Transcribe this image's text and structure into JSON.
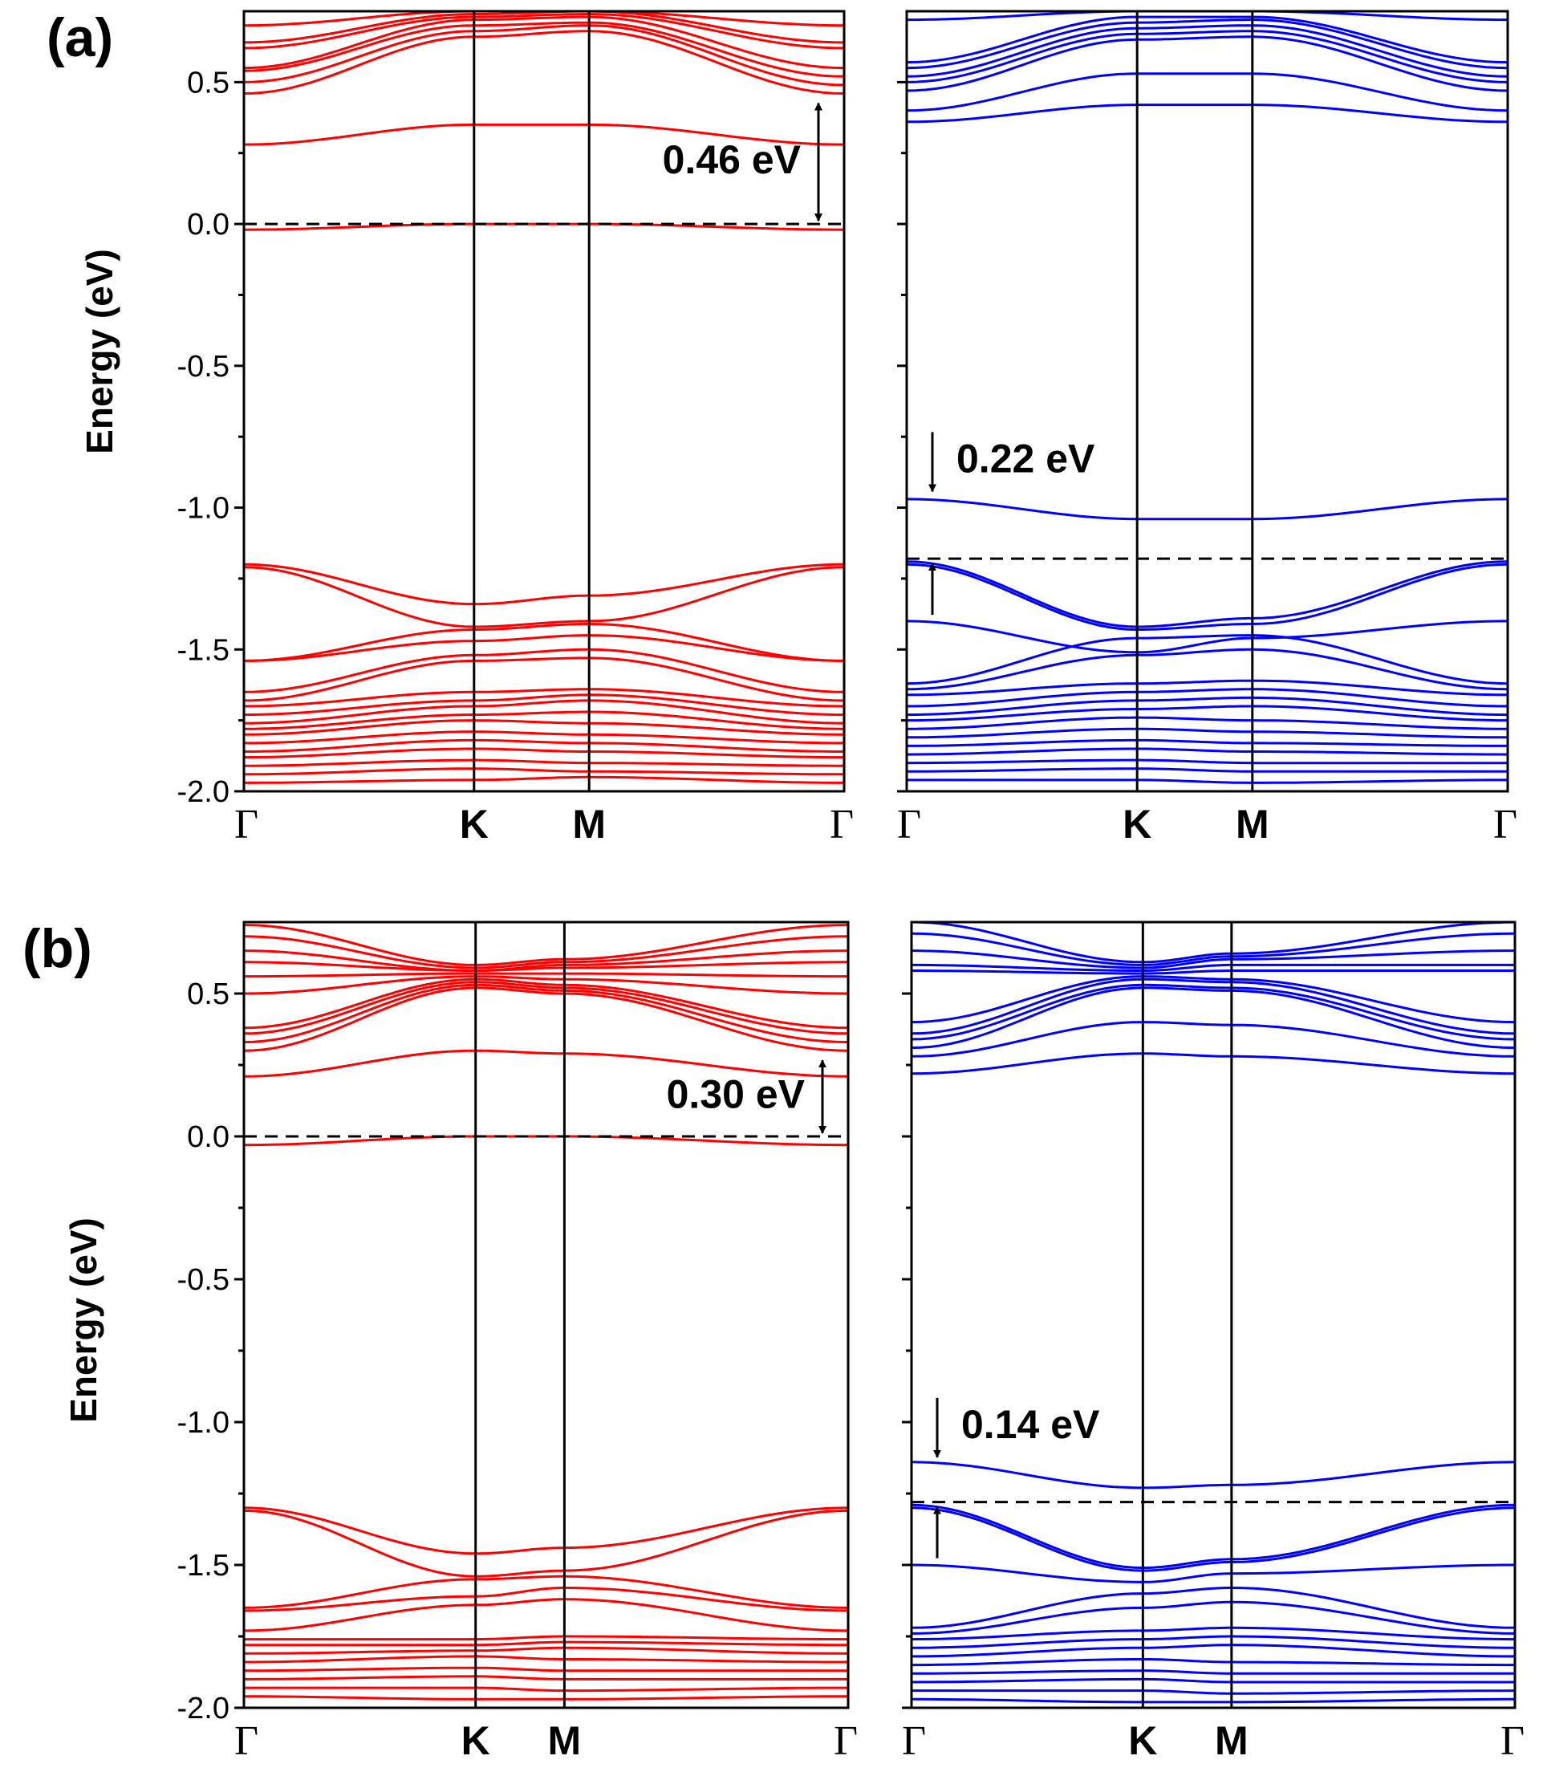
{
  "colors": {
    "spin_up": "#ff0000",
    "spin_down": "#0000ff",
    "axis": "#000000"
  },
  "chart_data": [
    {
      "panel": "(a)",
      "type": "line",
      "ylabel": "Energy (eV)",
      "ylim": [
        -2.0,
        0.75
      ],
      "yticks": [
        0.5,
        0.0,
        -0.5,
        -1.0,
        -1.5,
        -2.0
      ],
      "ytick_labels": [
        "0.5",
        "0.0",
        "-0.5",
        "-1.0",
        "-1.5",
        "-2.0"
      ],
      "kpoints": [
        "Γ",
        "K",
        "M",
        "Γ"
      ],
      "kpoint_positions": [
        0,
        0.574,
        0.861,
        1.497
      ],
      "subplots": [
        {
          "side": "left",
          "color": "spin_up",
          "dashed_line": 0.0,
          "gap_annotation": {
            "text": "0.46 eV",
            "from": 0.0,
            "to": 0.46
          },
          "bands": [
            [
              0.28,
              0.35,
              0.35,
              0.28
            ],
            [
              0.46,
              0.66,
              0.68,
              0.46
            ],
            [
              0.5,
              0.68,
              0.7,
              0.49
            ],
            [
              0.54,
              0.7,
              0.71,
              0.52
            ],
            [
              0.55,
              0.72,
              0.73,
              0.55
            ],
            [
              0.62,
              0.73,
              0.74,
              0.62
            ],
            [
              0.64,
              0.74,
              0.75,
              0.64
            ],
            [
              0.7,
              0.75,
              0.75,
              0.7
            ],
            [
              -0.02,
              0.0,
              0.0,
              -0.02
            ],
            [
              -1.2,
              -1.34,
              -1.31,
              -1.2
            ],
            [
              -1.21,
              -1.42,
              -1.4,
              -1.21
            ],
            [
              -1.54,
              -1.43,
              -1.41,
              -1.54
            ],
            [
              -1.54,
              -1.47,
              -1.45,
              -1.54
            ],
            [
              -1.65,
              -1.52,
              -1.5,
              -1.65
            ],
            [
              -1.68,
              -1.54,
              -1.53,
              -1.68
            ],
            [
              -1.7,
              -1.65,
              -1.64,
              -1.7
            ],
            [
              -1.73,
              -1.68,
              -1.66,
              -1.73
            ],
            [
              -1.76,
              -1.7,
              -1.68,
              -1.76
            ],
            [
              -1.78,
              -1.73,
              -1.72,
              -1.78
            ],
            [
              -1.8,
              -1.75,
              -1.76,
              -1.8
            ],
            [
              -1.83,
              -1.79,
              -1.8,
              -1.83
            ],
            [
              -1.86,
              -1.82,
              -1.83,
              -1.86
            ],
            [
              -1.88,
              -1.85,
              -1.86,
              -1.88
            ],
            [
              -1.91,
              -1.89,
              -1.9,
              -1.91
            ],
            [
              -1.94,
              -1.92,
              -1.93,
              -1.94
            ],
            [
              -1.97,
              -1.96,
              -1.95,
              -1.97
            ]
          ]
        },
        {
          "side": "right",
          "color": "spin_down",
          "dashed_line": -1.18,
          "gap_annotation": {
            "text": "0.22 eV",
            "from": -0.96,
            "to": -1.18
          },
          "bands": [
            [
              0.36,
              0.42,
              0.42,
              0.36
            ],
            [
              0.4,
              0.53,
              0.53,
              0.4
            ],
            [
              0.47,
              0.65,
              0.66,
              0.47
            ],
            [
              0.5,
              0.67,
              0.68,
              0.5
            ],
            [
              0.52,
              0.69,
              0.7,
              0.52
            ],
            [
              0.55,
              0.71,
              0.72,
              0.55
            ],
            [
              0.57,
              0.73,
              0.73,
              0.57
            ],
            [
              0.72,
              0.75,
              0.75,
              0.72
            ],
            [
              -0.97,
              -1.04,
              -1.04,
              -0.97
            ],
            [
              -1.19,
              -1.42,
              -1.39,
              -1.19
            ],
            [
              -1.2,
              -1.43,
              -1.41,
              -1.2
            ],
            [
              -1.4,
              -1.51,
              -1.46,
              -1.4
            ],
            [
              -1.62,
              -1.46,
              -1.45,
              -1.62
            ],
            [
              -1.64,
              -1.52,
              -1.5,
              -1.64
            ],
            [
              -1.66,
              -1.62,
              -1.61,
              -1.66
            ],
            [
              -1.7,
              -1.65,
              -1.64,
              -1.7
            ],
            [
              -1.73,
              -1.68,
              -1.67,
              -1.73
            ],
            [
              -1.75,
              -1.71,
              -1.7,
              -1.75
            ],
            [
              -1.78,
              -1.74,
              -1.75,
              -1.78
            ],
            [
              -1.81,
              -1.78,
              -1.79,
              -1.81
            ],
            [
              -1.84,
              -1.82,
              -1.83,
              -1.84
            ],
            [
              -1.87,
              -1.85,
              -1.86,
              -1.87
            ],
            [
              -1.9,
              -1.89,
              -1.9,
              -1.9
            ],
            [
              -1.93,
              -1.92,
              -1.93,
              -1.93
            ],
            [
              -1.96,
              -1.96,
              -1.97,
              -1.96
            ]
          ]
        }
      ]
    },
    {
      "panel": "(b)",
      "type": "line",
      "ylabel": "Energy (eV)",
      "ylim": [
        -2.0,
        0.75
      ],
      "yticks": [
        0.5,
        0.0,
        -0.5,
        -1.0,
        -1.5,
        -2.0
      ],
      "ytick_labels": [
        "0.5",
        "0.0",
        "-0.5",
        "-1.0",
        "-1.5",
        "-2.0"
      ],
      "kpoints": [
        "Γ",
        "K",
        "M",
        "Γ"
      ],
      "kpoint_positions": [
        0,
        0.574,
        0.794,
        1.497
      ],
      "subplots": [
        {
          "side": "left",
          "color": "spin_up",
          "dashed_line": 0.0,
          "gap_annotation": {
            "text": "0.30 eV",
            "from": 0.0,
            "to": 0.3
          },
          "bands": [
            [
              0.21,
              0.3,
              0.29,
              0.21
            ],
            [
              0.3,
              0.52,
              0.5,
              0.3
            ],
            [
              0.33,
              0.53,
              0.51,
              0.33
            ],
            [
              0.36,
              0.54,
              0.52,
              0.36
            ],
            [
              0.38,
              0.55,
              0.53,
              0.38
            ],
            [
              0.5,
              0.56,
              0.55,
              0.5
            ],
            [
              0.56,
              0.57,
              0.57,
              0.56
            ],
            [
              0.61,
              0.58,
              0.59,
              0.61
            ],
            [
              0.65,
              0.58,
              0.6,
              0.65
            ],
            [
              0.7,
              0.59,
              0.61,
              0.7
            ],
            [
              0.74,
              0.6,
              0.62,
              0.74
            ],
            [
              -0.03,
              0.0,
              0.0,
              -0.03
            ],
            [
              -1.3,
              -1.46,
              -1.44,
              -1.3
            ],
            [
              -1.31,
              -1.54,
              -1.52,
              -1.31
            ],
            [
              -1.65,
              -1.55,
              -1.54,
              -1.65
            ],
            [
              -1.66,
              -1.61,
              -1.58,
              -1.66
            ],
            [
              -1.73,
              -1.64,
              -1.62,
              -1.73
            ],
            [
              -1.76,
              -1.76,
              -1.75,
              -1.76
            ],
            [
              -1.78,
              -1.78,
              -1.77,
              -1.78
            ],
            [
              -1.81,
              -1.8,
              -1.79,
              -1.81
            ],
            [
              -1.84,
              -1.82,
              -1.83,
              -1.84
            ],
            [
              -1.87,
              -1.86,
              -1.87,
              -1.87
            ],
            [
              -1.9,
              -1.89,
              -1.9,
              -1.9
            ],
            [
              -1.93,
              -1.93,
              -1.94,
              -1.93
            ],
            [
              -1.96,
              -1.97,
              -1.97,
              -1.96
            ]
          ]
        },
        {
          "side": "right",
          "color": "spin_down",
          "dashed_line": -1.28,
          "gap_annotation": {
            "text": "0.14 eV",
            "from": -1.14,
            "to": -1.28
          },
          "bands": [
            [
              0.22,
              0.29,
              0.28,
              0.22
            ],
            [
              0.28,
              0.4,
              0.39,
              0.28
            ],
            [
              0.31,
              0.52,
              0.51,
              0.31
            ],
            [
              0.34,
              0.53,
              0.52,
              0.34
            ],
            [
              0.36,
              0.55,
              0.54,
              0.36
            ],
            [
              0.4,
              0.56,
              0.55,
              0.4
            ],
            [
              0.58,
              0.57,
              0.58,
              0.58
            ],
            [
              0.6,
              0.58,
              0.6,
              0.6
            ],
            [
              0.65,
              0.59,
              0.62,
              0.65
            ],
            [
              0.71,
              0.6,
              0.63,
              0.71
            ],
            [
              0.75,
              0.61,
              0.64,
              0.75
            ],
            [
              -1.14,
              -1.23,
              -1.22,
              -1.14
            ],
            [
              -1.29,
              -1.51,
              -1.48,
              -1.29
            ],
            [
              -1.3,
              -1.52,
              -1.49,
              -1.3
            ],
            [
              -1.5,
              -1.56,
              -1.53,
              -1.5
            ],
            [
              -1.72,
              -1.6,
              -1.58,
              -1.72
            ],
            [
              -1.74,
              -1.65,
              -1.63,
              -1.74
            ],
            [
              -1.76,
              -1.73,
              -1.72,
              -1.76
            ],
            [
              -1.79,
              -1.76,
              -1.75,
              -1.79
            ],
            [
              -1.82,
              -1.79,
              -1.78,
              -1.82
            ],
            [
              -1.85,
              -1.83,
              -1.84,
              -1.85
            ],
            [
              -1.88,
              -1.87,
              -1.88,
              -1.88
            ],
            [
              -1.91,
              -1.9,
              -1.91,
              -1.91
            ],
            [
              -1.94,
              -1.94,
              -1.95,
              -1.94
            ],
            [
              -1.97,
              -1.98,
              -1.98,
              -1.97
            ]
          ]
        }
      ]
    }
  ]
}
